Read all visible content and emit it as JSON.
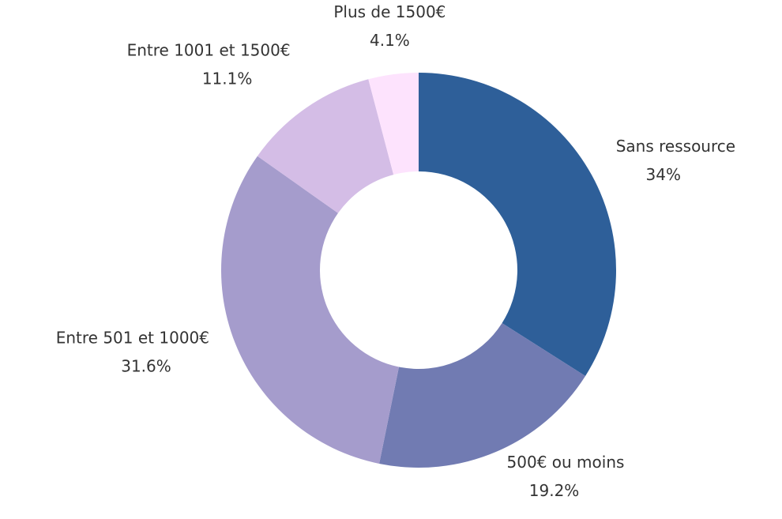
{
  "chart_data": {
    "type": "donut",
    "categories": [
      "Sans ressource",
      "500€ ou moins",
      "Entre 501 et 1000€",
      "Entre 1001 et 1500€",
      "Plus de 1500€"
    ],
    "values": [
      34,
      19.2,
      31.6,
      11.1,
      4.1
    ],
    "value_labels": [
      "34%",
      "19.2%",
      "31.6%",
      "11.1%",
      "4.1%"
    ],
    "colors": [
      "#2e5f99",
      "#717bb2",
      "#a59ccc",
      "#d4bde6",
      "#fde3fd"
    ]
  }
}
